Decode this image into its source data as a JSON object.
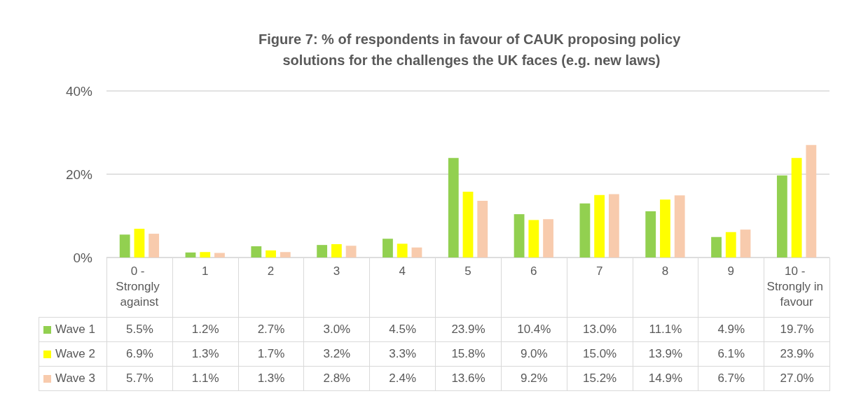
{
  "chart_data": {
    "type": "bar",
    "title": "Figure 7: % of respondents in favour of CAUK proposing policy solutions for the challenges the UK faces (e.g. new laws)",
    "categories": [
      "0 - Strongly against",
      "1",
      "2",
      "3",
      "4",
      "5",
      "6",
      "7",
      "8",
      "9",
      "10 - Strongly in favour"
    ],
    "series": [
      {
        "name": "Wave 1",
        "color": "#92d050",
        "values": [
          5.5,
          1.2,
          2.7,
          3.0,
          4.5,
          23.9,
          10.4,
          13.0,
          11.1,
          4.9,
          19.7
        ],
        "value_labels": [
          "5.5%",
          "1.2%",
          "2.7%",
          "3.0%",
          "4.5%",
          "23.9%",
          "10.4%",
          "13.0%",
          "11.1%",
          "4.9%",
          "19.7%"
        ]
      },
      {
        "name": "Wave 2",
        "color": "#ffff00",
        "values": [
          6.9,
          1.3,
          1.7,
          3.2,
          3.3,
          15.8,
          9.0,
          15.0,
          13.9,
          6.1,
          23.9
        ],
        "value_labels": [
          "6.9%",
          "1.3%",
          "1.7%",
          "3.2%",
          "3.3%",
          "15.8%",
          "9.0%",
          "15.0%",
          "13.9%",
          "6.1%",
          "23.9%"
        ]
      },
      {
        "name": "Wave 3",
        "color": "#f8cbad",
        "values": [
          5.7,
          1.1,
          1.3,
          2.8,
          2.4,
          13.6,
          9.2,
          15.2,
          14.9,
          6.7,
          27.0
        ],
        "value_labels": [
          "5.7%",
          "1.1%",
          "1.3%",
          "2.8%",
          "2.4%",
          "13.6%",
          "9.2%",
          "15.2%",
          "14.9%",
          "6.7%",
          "27.0%"
        ]
      }
    ],
    "ylim": [
      0,
      40
    ],
    "yticks": [
      {
        "value": 0,
        "label": "0%"
      },
      {
        "value": 20,
        "label": "20%"
      },
      {
        "value": 40,
        "label": "40%"
      }
    ],
    "grid": "y",
    "legend": "bottom"
  }
}
